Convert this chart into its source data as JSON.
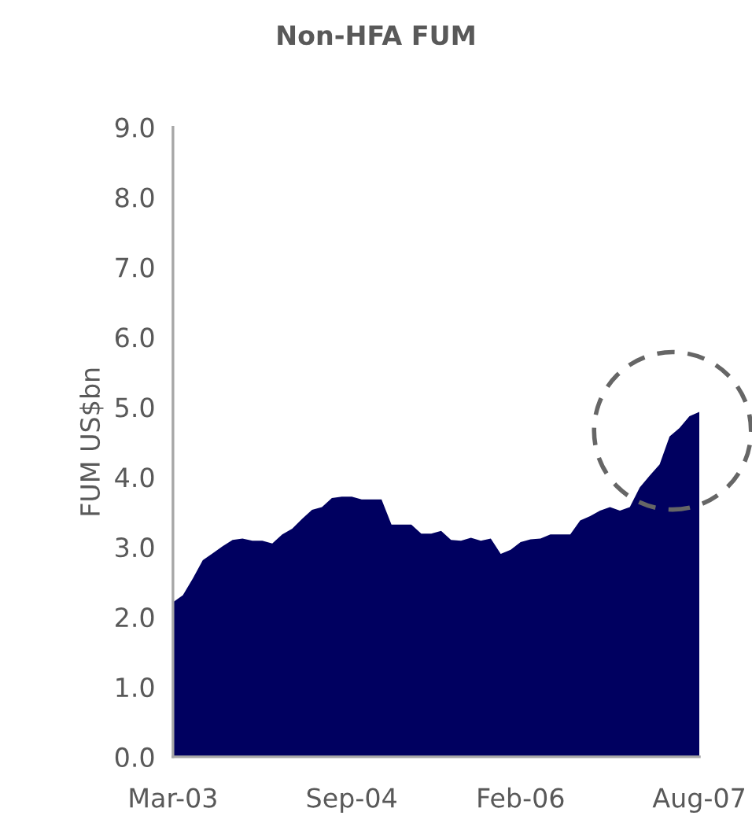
{
  "chart_data": {
    "type": "area",
    "title": "Non-HFA FUM",
    "ylabel": "FUM US$bn",
    "categories": [
      "Mar-03",
      null,
      null,
      null,
      null,
      null,
      null,
      null,
      null,
      null,
      null,
      null,
      null,
      null,
      null,
      null,
      null,
      null,
      "Sep-04",
      null,
      null,
      null,
      null,
      null,
      null,
      null,
      null,
      null,
      null,
      null,
      null,
      null,
      null,
      null,
      null,
      "Feb-06",
      null,
      null,
      null,
      null,
      null,
      null,
      null,
      null,
      null,
      null,
      null,
      null,
      null,
      null,
      null,
      null,
      null,
      "Aug-07"
    ],
    "series": [
      {
        "color": "#000060",
        "values": [
          2.21,
          2.31,
          2.55,
          2.81,
          2.91,
          3.01,
          3.1,
          3.12,
          3.09,
          3.09,
          3.05,
          3.18,
          3.26,
          3.4,
          3.53,
          3.57,
          3.7,
          3.72,
          3.72,
          3.68,
          3.68,
          3.68,
          3.32,
          3.32,
          3.32,
          3.19,
          3.19,
          3.23,
          3.1,
          3.09,
          3.13,
          3.09,
          3.12,
          2.9,
          2.96,
          3.07,
          3.11,
          3.12,
          3.18,
          3.18,
          3.18,
          3.38,
          3.44,
          3.52,
          3.57,
          3.52,
          3.57,
          3.85,
          4.02,
          4.18,
          4.58,
          4.7,
          4.87,
          4.93
        ]
      }
    ],
    "ylim": [
      0,
      9
    ],
    "yticks": [
      {
        "value": 0,
        "label": "0.0"
      },
      {
        "value": 1,
        "label": "1.0"
      },
      {
        "value": 2,
        "label": "2.0"
      },
      {
        "value": 3,
        "label": "3.0"
      },
      {
        "value": 4,
        "label": "4.0"
      },
      {
        "value": 5,
        "label": "5.0"
      },
      {
        "value": 6,
        "label": "6.0"
      },
      {
        "value": 7,
        "label": "7.0"
      },
      {
        "value": 8,
        "label": "8.0"
      },
      {
        "value": 9,
        "label": "9.0"
      }
    ],
    "grid": false,
    "legend": false
  }
}
